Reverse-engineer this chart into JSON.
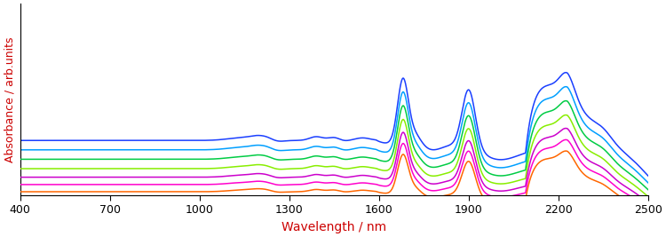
{
  "title": "",
  "xlabel": "Wavelength / nm",
  "ylabel": "Absorbance / arb.units",
  "xlabel_color": "#cc0000",
  "ylabel_color": "#cc0000",
  "xlim": [
    400,
    2500
  ],
  "x_ticks": [
    400,
    700,
    1000,
    1300,
    1600,
    1900,
    2200,
    2500
  ],
  "background_color": "#ffffff",
  "line_colors": [
    "#1a3fff",
    "#009fff",
    "#00cc44",
    "#88ee00",
    "#cc00cc",
    "#ff00cc",
    "#ff6600"
  ],
  "base_offsets": [
    0.3,
    0.245,
    0.19,
    0.135,
    0.085,
    0.042,
    0.0
  ],
  "peak_scales": [
    1.0,
    0.93,
    0.86,
    0.79,
    0.72,
    0.66,
    0.6
  ]
}
